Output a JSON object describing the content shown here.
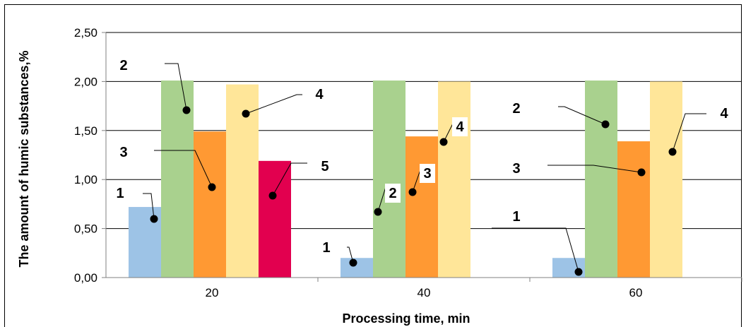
{
  "chart_data": {
    "type": "bar",
    "xlabel": "Processing time, min",
    "ylabel": "The amount of humic substances,%",
    "ylim": [
      0,
      2.5
    ],
    "yticks": [
      "0,00",
      "0,50",
      "1,00",
      "1,50",
      "2,00",
      "2,50"
    ],
    "categories": [
      "20",
      "40",
      "60"
    ],
    "grid": "horizontal",
    "series": [
      {
        "name": "1",
        "color": "#9DC3E6",
        "values": [
          0.72,
          0.2,
          0.2
        ]
      },
      {
        "name": "2",
        "color": "#A9D18E",
        "values": [
          2.01,
          2.01,
          2.01
        ]
      },
      {
        "name": "3",
        "color": "#FF9933",
        "values": [
          1.49,
          1.44,
          1.39
        ]
      },
      {
        "name": "4",
        "color": "#FFE699",
        "values": [
          1.97,
          2.0,
          2.0
        ]
      },
      {
        "name": "5",
        "color": "#E2004F",
        "values": [
          1.19,
          0,
          0
        ]
      }
    ]
  }
}
